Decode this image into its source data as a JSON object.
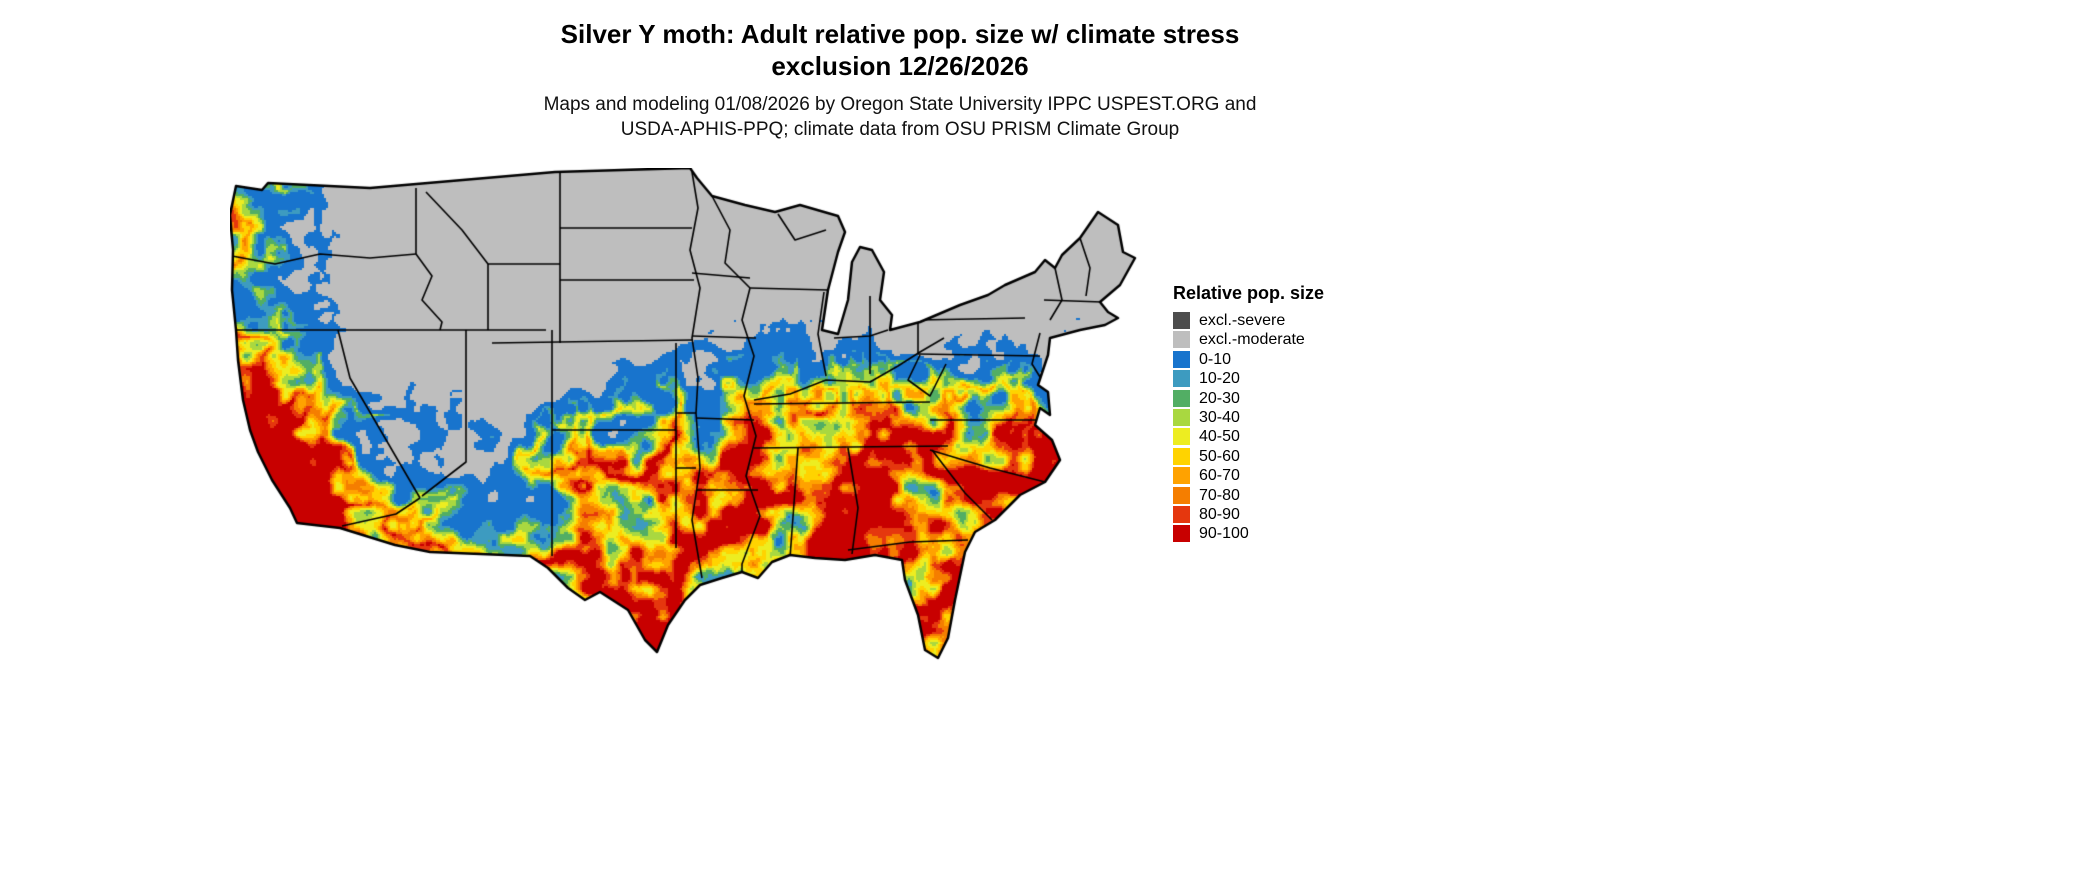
{
  "header": {
    "title_line1": "Silver Y moth: Adult relative pop. size w/ climate stress",
    "title_line2": "exclusion 12/26/2026",
    "subtitle_line1": "Maps and modeling 01/08/2026 by Oregon State University IPPC USPEST.ORG and",
    "subtitle_line2": "USDA-APHIS-PPQ; climate data from OSU PRISM Climate Group"
  },
  "map": {
    "background_color": "#FFFFFF",
    "excluded_land_color": "#BEBEBE",
    "state_border_color": "#000000"
  },
  "legend": {
    "title": "Relative pop. size",
    "items": [
      {
        "label": "excl.-severe",
        "color": "#4D4D4D"
      },
      {
        "label": "excl.-moderate",
        "color": "#BEBEBE"
      },
      {
        "label": "0-10",
        "color": "#1874CD"
      },
      {
        "label": "10-20",
        "color": "#3D9BC0"
      },
      {
        "label": "20-30",
        "color": "#52AE64"
      },
      {
        "label": "30-40",
        "color": "#A9D840"
      },
      {
        "label": "40-50",
        "color": "#EDED21"
      },
      {
        "label": "50-60",
        "color": "#FFD300"
      },
      {
        "label": "60-70",
        "color": "#FFA200"
      },
      {
        "label": "70-80",
        "color": "#F57E00"
      },
      {
        "label": "80-90",
        "color": "#E5370E"
      },
      {
        "label": "90-100",
        "color": "#C80000"
      }
    ]
  }
}
